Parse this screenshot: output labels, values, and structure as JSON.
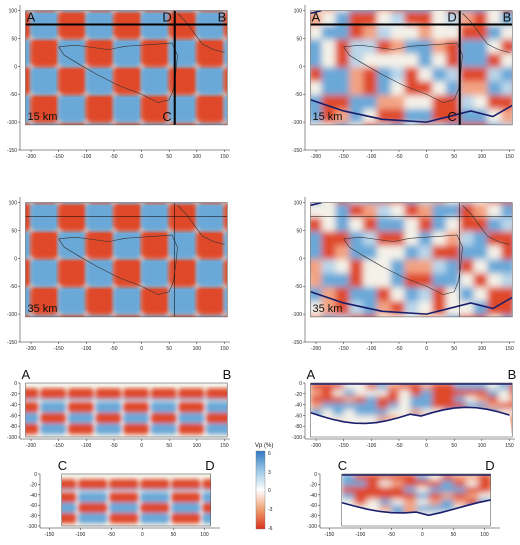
{
  "figure": {
    "panels": [
      {
        "id": "map-15-synthetic",
        "kind": "map",
        "depth": "15 km",
        "pattern": "checker",
        "corner_labels": [
          "A",
          "B",
          "C",
          "D"
        ]
      },
      {
        "id": "map-15-recovered",
        "kind": "map",
        "depth": "15 km",
        "pattern": "recovered",
        "corner_labels": [
          "A",
          "B",
          "C",
          "D"
        ]
      },
      {
        "id": "map-35-synthetic",
        "kind": "map",
        "depth": "35 km",
        "pattern": "checker"
      },
      {
        "id": "map-35-recovered",
        "kind": "map",
        "depth": "35 km",
        "pattern": "recovered"
      },
      {
        "id": "section-AB-synthetic",
        "kind": "section",
        "start": "A",
        "end": "B",
        "pattern": "layers"
      },
      {
        "id": "section-AB-recovered",
        "kind": "section",
        "start": "A",
        "end": "B",
        "pattern": "recovered"
      },
      {
        "id": "section-CD-synthetic",
        "kind": "section",
        "start": "C",
        "end": "D",
        "pattern": "layers"
      },
      {
        "id": "section-CD-recovered",
        "kind": "section",
        "start": "C",
        "end": "D",
        "pattern": "recovered"
      }
    ],
    "map_x_ticks": [
      "-200",
      "-150",
      "-100",
      "-50",
      "0",
      "50",
      "100",
      "150"
    ],
    "map_y_ticks": [
      "100",
      "50",
      "0",
      "-50",
      "-100",
      "-150"
    ],
    "section_ab_x_ticks": [
      "-200",
      "-150",
      "-100",
      "-50",
      "0",
      "50",
      "100",
      "150"
    ],
    "section_cd_x_ticks": [
      "-150",
      "-100",
      "-50",
      "0",
      "50",
      "100"
    ],
    "section_y_ticks": [
      "0",
      "-20",
      "-40",
      "-60",
      "-80",
      "-100"
    ],
    "colorbar": {
      "title": "Vp (%)",
      "ticks": [
        "6",
        "3",
        "0",
        "-3",
        "-6"
      ],
      "colors": {
        "high": "#2f78c4",
        "mid": "#ffffff",
        "low": "#d9301c"
      }
    },
    "colors": {
      "anomaly_fast": "#6aa8d8",
      "anomaly_slow": "#df4a2c",
      "neutral": "#f4f1e8",
      "resolution_contour": "#1a1f6b",
      "coastline": "#333333"
    }
  }
}
